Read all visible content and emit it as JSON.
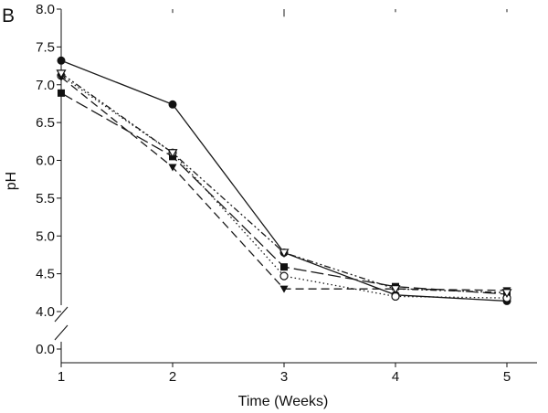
{
  "chart_data": {
    "type": "line",
    "panel_label": "B",
    "xlabel": "Time (Weeks)",
    "ylabel": "pH",
    "x": [
      1,
      2,
      3,
      4,
      5
    ],
    "x_ticks": [
      1,
      2,
      3,
      4,
      5
    ],
    "xlim": [
      1,
      5.3
    ],
    "ylim": [
      4.0,
      8.0
    ],
    "axis_break": true,
    "y_break_value": 0.0,
    "y_ticks": [
      "4.0",
      "4.5",
      "5.0",
      "5.5",
      "6.0",
      "6.5",
      "7.0",
      "7.5",
      "8.0"
    ],
    "y_break_tick": "0.0",
    "error_bars_top": [
      0.05,
      0.05,
      0.1,
      0.04,
      0.04
    ],
    "series": [
      {
        "name": "filled circle",
        "marker": "circle-filled",
        "dash": "solid",
        "values": [
          7.32,
          6.74,
          4.78,
          4.22,
          4.14
        ]
      },
      {
        "name": "filled square",
        "marker": "square-filled",
        "dash": "long-dash",
        "values": [
          6.89,
          6.05,
          4.59,
          4.33,
          4.23
        ]
      },
      {
        "name": "open circle",
        "marker": "circle-open",
        "dash": "dotted",
        "values": [
          7.12,
          6.1,
          4.47,
          4.2,
          4.18
        ]
      },
      {
        "name": "filled triangle",
        "marker": "triangle-down-filled",
        "dash": "short-dash",
        "values": [
          7.1,
          5.91,
          4.3,
          4.3,
          4.28
        ]
      },
      {
        "name": "open triangle",
        "marker": "triangle-down-open",
        "dash": "dash-dot-dot",
        "values": [
          7.15,
          6.1,
          4.78,
          4.3,
          4.25
        ]
      }
    ]
  }
}
